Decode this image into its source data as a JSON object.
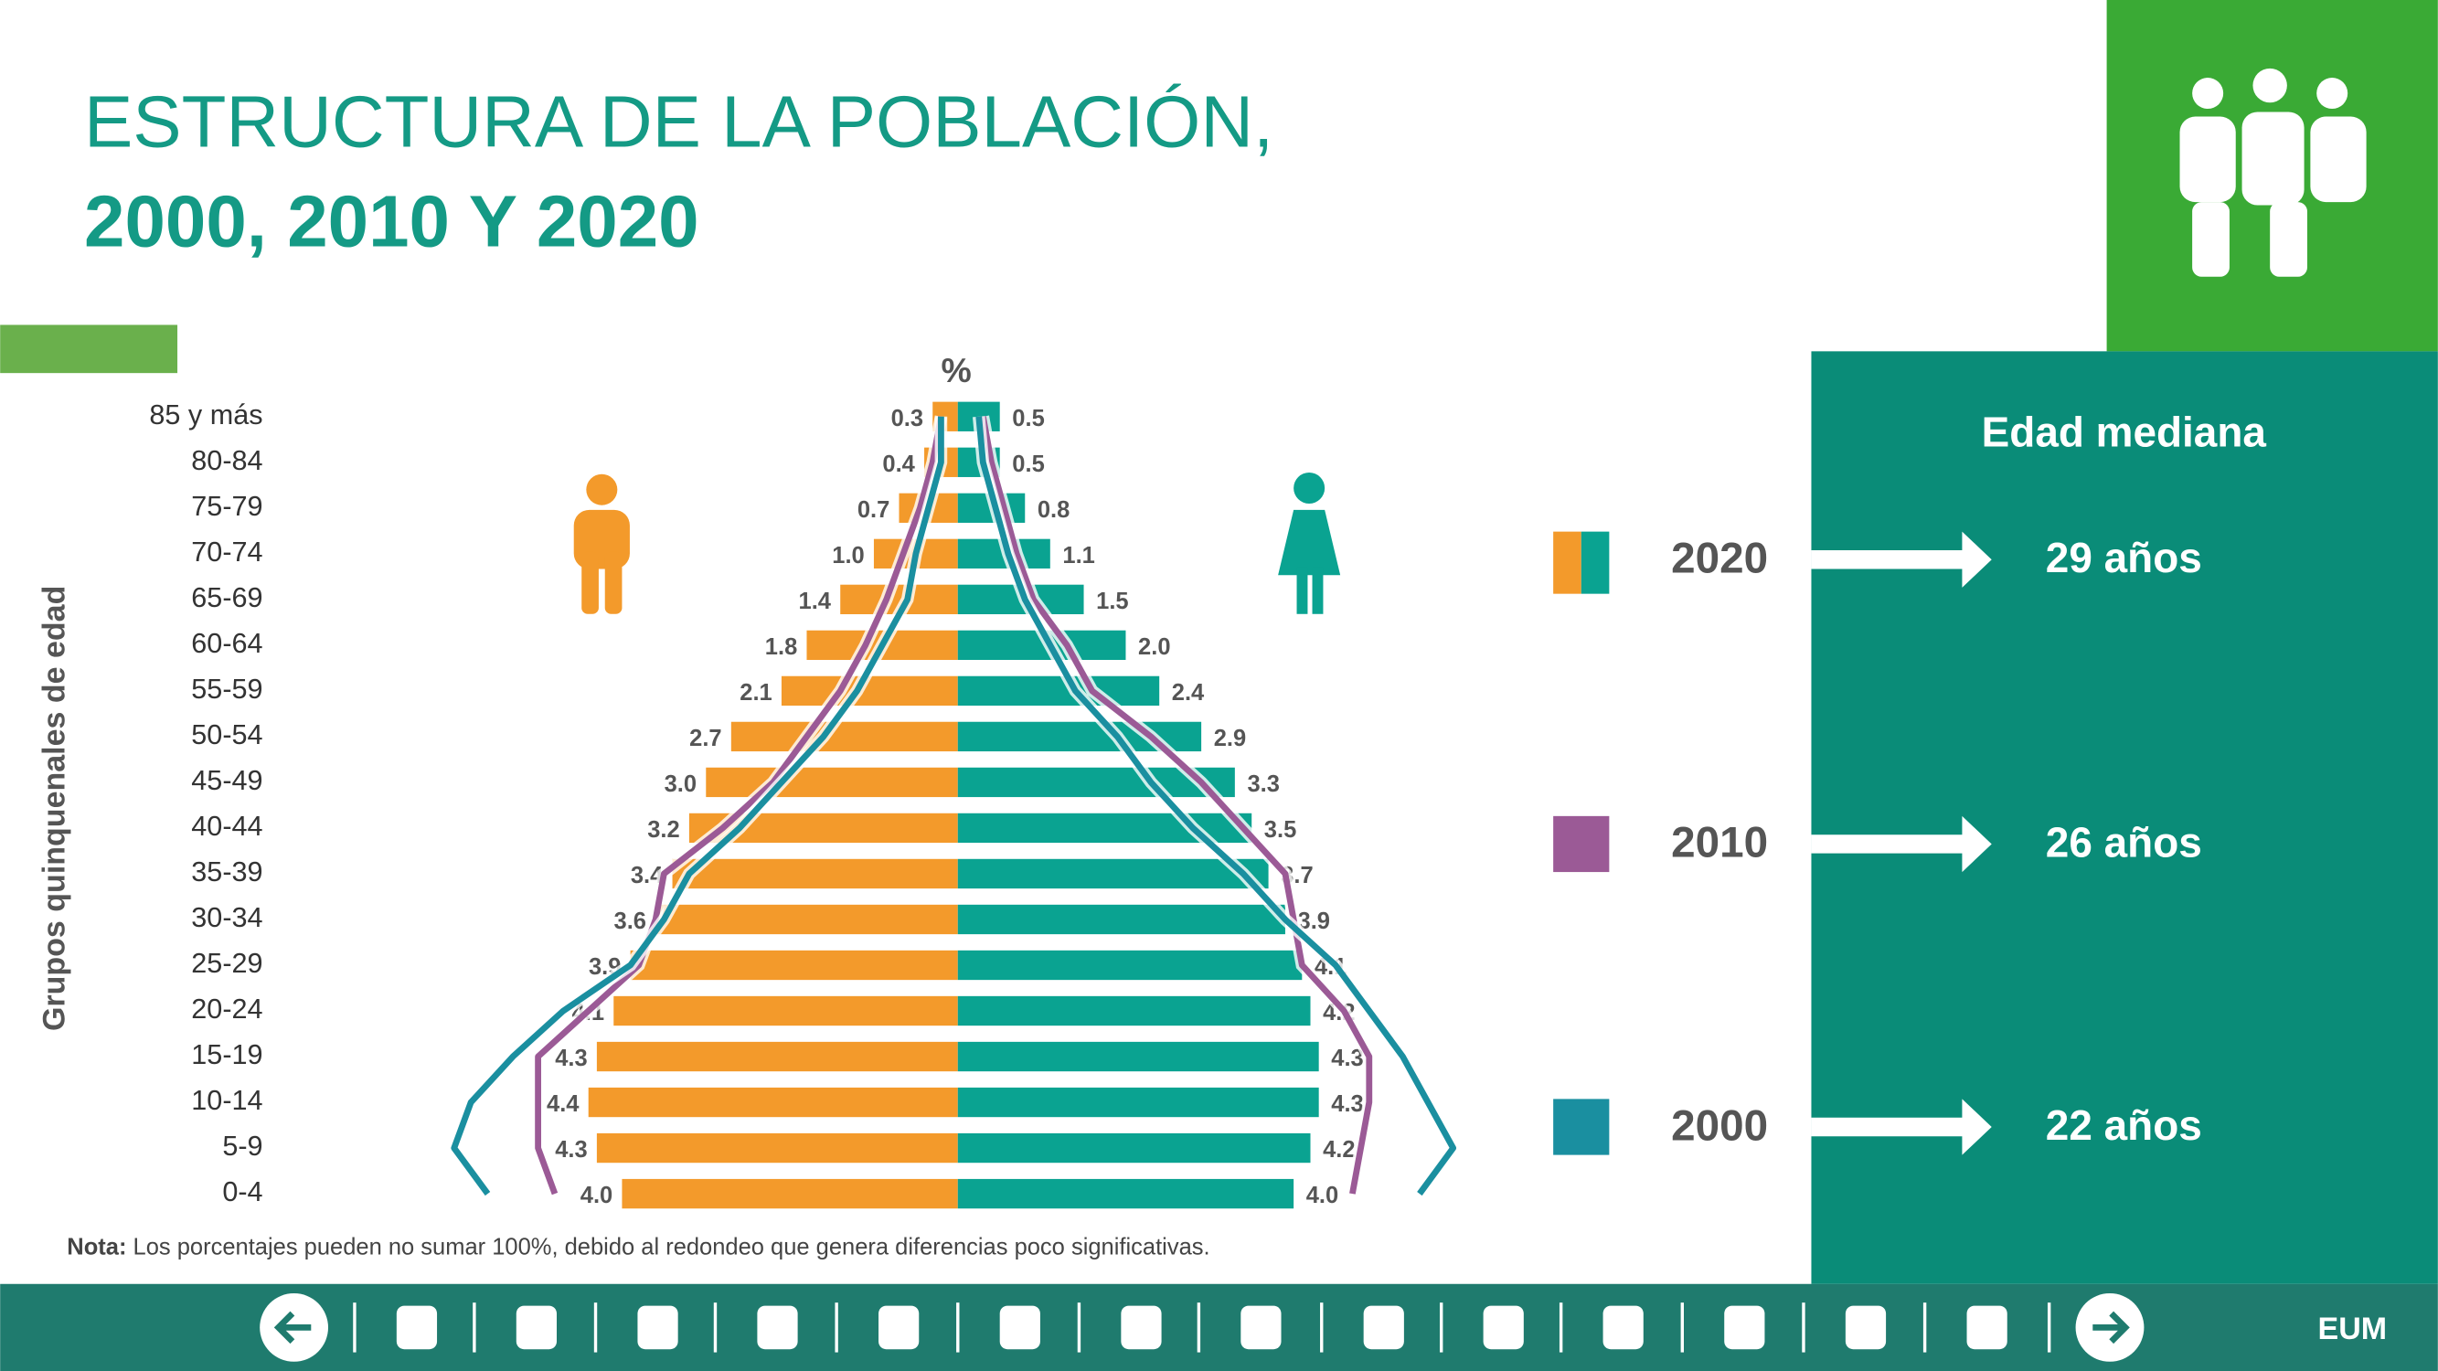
{
  "header": {
    "title_line1": "ESTRUCTURA DE LA  POBLACIÓN,",
    "title_line2": "2000, 2010 Y 2020"
  },
  "chart_data": {
    "type": "pyramid",
    "unit_label": "%",
    "y_axis_label": "Grupos quinquenales de edad",
    "categories": [
      "85 y más",
      "80-84",
      "75-79",
      "70-74",
      "65-69",
      "60-64",
      "55-59",
      "50-54",
      "45-49",
      "40-44",
      "35-39",
      "30-34",
      "25-29",
      "20-24",
      "15-19",
      "10-14",
      "5-9",
      "0-4"
    ],
    "series": [
      {
        "name": "2020",
        "style": "bar",
        "colors": [
          "#f39a2b",
          "#0aa391"
        ],
        "men": [
          0.3,
          0.4,
          0.7,
          1.0,
          1.4,
          1.8,
          2.1,
          2.7,
          3.0,
          3.2,
          3.4,
          3.6,
          3.9,
          4.1,
          4.3,
          4.4,
          4.3,
          4.0
        ],
        "men_labels": [
          "0.3",
          "0.4",
          "0.7",
          "1.0",
          "1.4",
          "1.8",
          "2.1",
          "2.7",
          "3.0",
          "3.2",
          "3.4",
          "3.6",
          "3.9",
          "4.1",
          "4.3",
          "4.4",
          "4.3",
          "4.0"
        ],
        "women": [
          0.5,
          0.5,
          0.8,
          1.1,
          1.5,
          2.0,
          2.4,
          2.9,
          3.3,
          3.5,
          3.7,
          3.9,
          4.1,
          4.2,
          4.3,
          4.3,
          4.2,
          4.0
        ],
        "women_labels": [
          "0.5",
          "0.5",
          "0.8",
          "1.1",
          "1.5",
          "2.0",
          "2.4",
          "2.9",
          "3.3",
          "3.5",
          "3.7",
          "3.9",
          "4.1",
          "4.2",
          "4.3",
          "4.3",
          "4.2",
          "4.0"
        ]
      },
      {
        "name": "2010",
        "style": "line",
        "colors": [
          "#9b5a96"
        ],
        "men": [
          0.2,
          0.3,
          0.45,
          0.65,
          0.85,
          1.1,
          1.4,
          1.8,
          2.2,
          2.8,
          3.5,
          3.6,
          3.8,
          4.4,
          5.0,
          5.0,
          5.0,
          4.8
        ],
        "women": [
          0.3,
          0.4,
          0.55,
          0.7,
          0.9,
          1.3,
          1.6,
          2.3,
          2.9,
          3.4,
          3.9,
          4.0,
          4.1,
          4.6,
          4.9,
          4.9,
          4.8,
          4.7
        ]
      },
      {
        "name": "2000",
        "style": "line",
        "colors": [
          "#1a8fa0"
        ],
        "men": [
          0.2,
          0.2,
          0.35,
          0.5,
          0.6,
          0.9,
          1.2,
          1.6,
          2.1,
          2.6,
          3.2,
          3.5,
          3.9,
          4.7,
          5.3,
          5.8,
          6.0,
          5.6
        ],
        "women": [
          0.25,
          0.3,
          0.45,
          0.6,
          0.8,
          1.1,
          1.4,
          1.9,
          2.3,
          2.8,
          3.4,
          3.9,
          4.5,
          4.9,
          5.3,
          5.6,
          5.9,
          5.5
        ]
      }
    ]
  },
  "median": {
    "title": "Edad mediana",
    "values": [
      "29 años",
      "26 años",
      "22 años"
    ]
  },
  "note": {
    "label": "Nota:",
    "text": " Los porcentajes pueden no sumar 100%, debido al redondeo que genera diferencias poco significativas."
  },
  "footer": {
    "code": "EUM"
  }
}
